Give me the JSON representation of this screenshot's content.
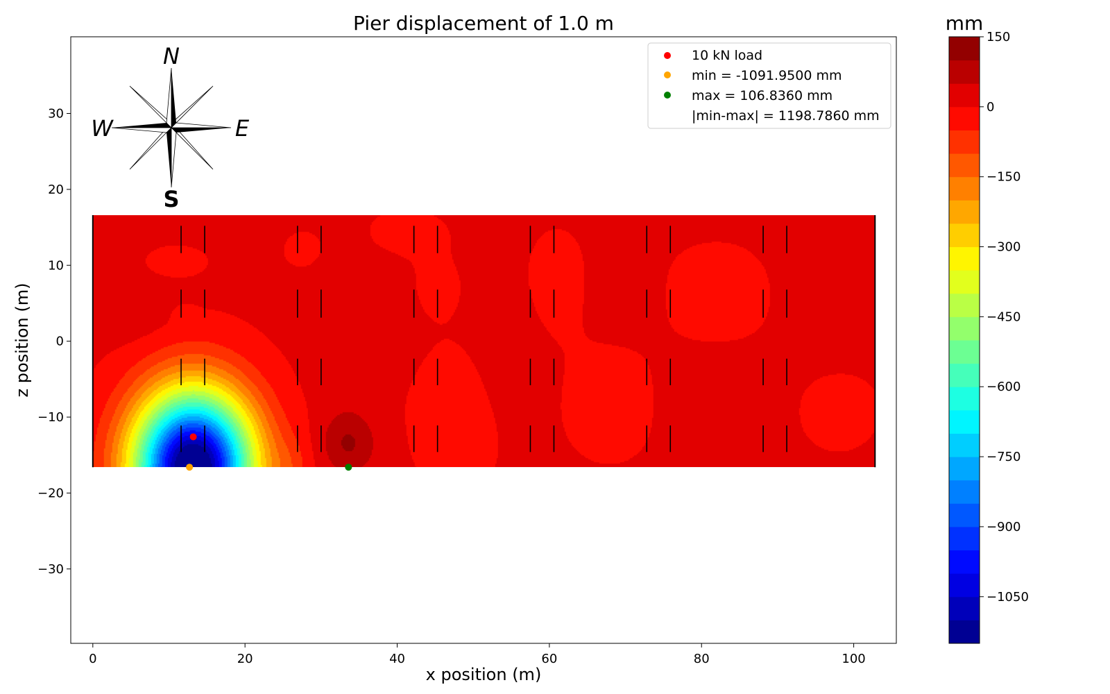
{
  "chart_data": {
    "type": "heatmap",
    "title": "Pier displacement of 1.0 m",
    "xlabel": "x position (m)",
    "ylabel": "z position (m)",
    "xlim": [
      -2.9,
      105.6
    ],
    "ylim": [
      -39.8,
      40.1
    ],
    "xticks": [
      0,
      20,
      40,
      60,
      80,
      100
    ],
    "yticks": [
      -30,
      -20,
      -10,
      0,
      10,
      20,
      30
    ],
    "domain": {
      "x": [
        0,
        102.8
      ],
      "z": [
        -16.6,
        16.6
      ]
    },
    "grid": false,
    "compass": {
      "north": "N",
      "south": "S",
      "east": "E",
      "west": "W"
    },
    "legend": {
      "position": "upper right",
      "entries": [
        {
          "label": "10 kN load",
          "color": "#ff0000",
          "x": 13.2,
          "z": -12.6
        },
        {
          "label": "min = -1091.9500 mm",
          "color": "#ffa500",
          "x": 12.7,
          "z": -16.6
        },
        {
          "label": "max = 106.8360 mm",
          "color": "#008000",
          "x": 33.6,
          "z": -16.6
        },
        {
          "label": "|min-max| = 1198.7860 mm",
          "color": null
        }
      ]
    },
    "piers": {
      "x": [
        11.6,
        14.7,
        26.9,
        30.0,
        42.2,
        45.3,
        57.5,
        60.6,
        72.8,
        75.9,
        88.1,
        91.2
      ],
      "z_segments": [
        [
          11.6,
          15.2
        ],
        [
          3.1,
          6.8
        ],
        [
          -5.8,
          -2.3
        ],
        [
          -14.6,
          -11.1
        ]
      ]
    },
    "colorbar": {
      "label": "mm",
      "vmin": -1150,
      "vmax": 150,
      "step": 50,
      "ticks": [
        150,
        0,
        -150,
        -300,
        -450,
        -600,
        -750,
        -900,
        -1050
      ],
      "colormap": "jet"
    },
    "field": {
      "base": 10,
      "bumps": [
        {
          "x": 13.2,
          "z": -16.6,
          "amp": -1230,
          "sx": 7.6,
          "sz": 9.6
        },
        {
          "x": 33.6,
          "z": -13.5,
          "amp": 95,
          "sx": 3.5,
          "sz": 4.0
        },
        {
          "x": 26.0,
          "z": -16.6,
          "amp": -45,
          "sx": 2.5,
          "sz": 4.0
        },
        {
          "x": 33.0,
          "z": 2.0,
          "amp": 30,
          "sx": 3.5,
          "sz": 10.0
        },
        {
          "x": 38.0,
          "z": 4.0,
          "amp": 30,
          "sx": 4.0,
          "sz": 6.0
        },
        {
          "x": 41.0,
          "z": 14.0,
          "amp": -25,
          "sx": 6.0,
          "sz": 3.5
        },
        {
          "x": 48.0,
          "z": -10.0,
          "amp": -40,
          "sx": 6.0,
          "sz": 9.0
        },
        {
          "x": 45.0,
          "z": 7.0,
          "amp": -25,
          "sx": 3.5,
          "sz": 4.0
        },
        {
          "x": 55.0,
          "z": -3.0,
          "amp": 25,
          "sx": 5.0,
          "sz": 9.0
        },
        {
          "x": 61.0,
          "z": 7.0,
          "amp": -35,
          "sx": 4.0,
          "sz": 7.0
        },
        {
          "x": 68.0,
          "z": -8.0,
          "amp": -40,
          "sx": 6.0,
          "sz": 7.0
        },
        {
          "x": 70.0,
          "z": 6.0,
          "amp": 20,
          "sx": 5.0,
          "sz": 5.0
        },
        {
          "x": 82.0,
          "z": 6.0,
          "amp": -40,
          "sx": 7.0,
          "sz": 6.0
        },
        {
          "x": 82.0,
          "z": -8.0,
          "amp": 25,
          "sx": 7.0,
          "sz": 6.0
        },
        {
          "x": 97.0,
          "z": 6.0,
          "amp": 25,
          "sx": 6.0,
          "sz": 8.0
        },
        {
          "x": 98.0,
          "z": -9.0,
          "amp": -35,
          "sx": 5.0,
          "sz": 5.0
        },
        {
          "x": 6.0,
          "z": 3.0,
          "amp": 20,
          "sx": 5.0,
          "sz": 4.0
        },
        {
          "x": 11.0,
          "z": 10.5,
          "amp": -40,
          "sx": 3.5,
          "sz": 1.8
        },
        {
          "x": 12.0,
          "z": 3.5,
          "amp": -25,
          "sx": 1.5,
          "sz": 1.2
        },
        {
          "x": 28.0,
          "z": 12.0,
          "amp": -20,
          "sx": 3.5,
          "sz": 3.0
        }
      ]
    }
  }
}
